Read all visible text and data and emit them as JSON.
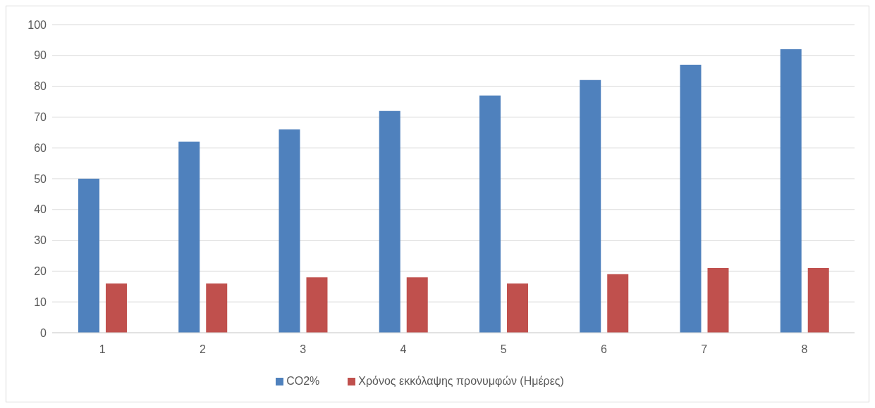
{
  "chart_data": {
    "type": "bar",
    "categories": [
      "1",
      "2",
      "3",
      "4",
      "5",
      "6",
      "7",
      "8"
    ],
    "series": [
      {
        "name": "CO2%",
        "color": "#4f81bd",
        "values": [
          50,
          62,
          66,
          72,
          77,
          82,
          87,
          92
        ]
      },
      {
        "name": "Χρόνος εκκόλαψης προνυμφών (Ημέρες)",
        "color": "#c0504d",
        "values": [
          16,
          16,
          18,
          18,
          16,
          19,
          21,
          21
        ]
      }
    ],
    "ylim": [
      0,
      100
    ],
    "yticks": [
      0,
      10,
      20,
      30,
      40,
      50,
      60,
      70,
      80,
      90,
      100
    ],
    "grid": "y",
    "legend": "bottom"
  }
}
